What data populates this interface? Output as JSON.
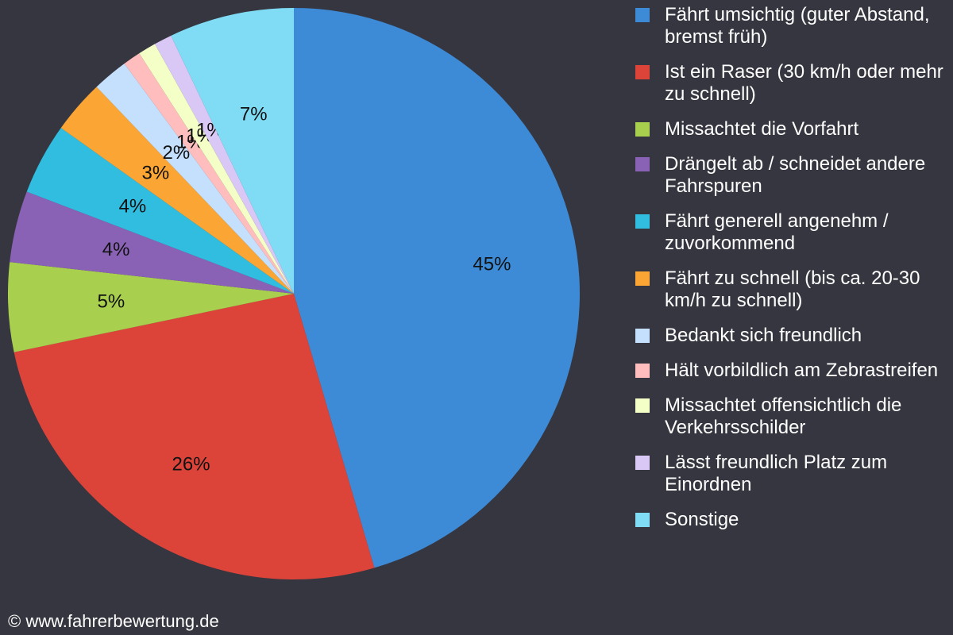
{
  "chart_data": {
    "type": "pie",
    "categories": [
      "Fährt umsichtig (guter Abstand, bremst früh)",
      "Ist ein Raser (30 km/h oder mehr zu schnell)",
      "Missachtet die Vorfahrt",
      "Drängelt ab / schneidet andere Fahrspuren",
      "Fährt generell angenehm / zuvorkommend",
      "Fährt zu schnell (bis ca. 20-30 km/h zu schnell)",
      "Bedankt sich freundlich",
      "Hält vorbildlich am Zebrastreifen",
      "Missachtet offensichtlich die Verkehrsschilder",
      "Lässt freundlich Platz zum Einordnen",
      "Sonstige"
    ],
    "values": [
      45,
      26,
      5,
      4,
      4,
      3,
      2,
      1,
      1,
      1,
      7
    ],
    "value_labels": [
      "45%",
      "26%",
      "5%",
      "4%",
      "4%",
      "3%",
      "2%",
      "1%",
      "1%",
      "1%",
      "7%"
    ],
    "colors": [
      "#3d8ad6",
      "#dc443a",
      "#a8cf4e",
      "#8a62b5",
      "#31bde0",
      "#fba634",
      "#c5e0fc",
      "#ffbdbd",
      "#f3ffc6",
      "#d9c8f5",
      "#80dcf5"
    ],
    "legend": "right"
  },
  "footer": "© www.fahrerbewertung.de"
}
